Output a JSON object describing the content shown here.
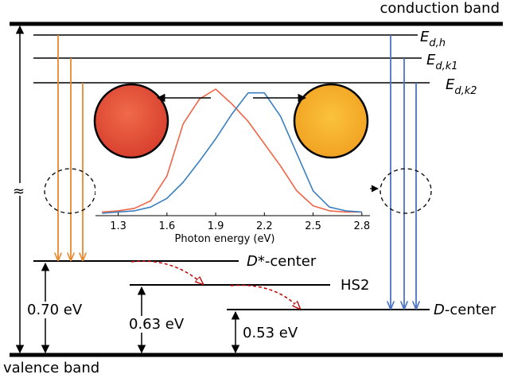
{
  "top_label": "conduction band",
  "bottom_label": "valence band",
  "levels": [
    {
      "symbol": "E",
      "subscript": "d,h"
    },
    {
      "symbol": "E",
      "subscript": "d,k1"
    },
    {
      "symbol": "E",
      "subscript": "d,k2"
    }
  ],
  "centers": [
    {
      "italic": "D*",
      "text": "-center",
      "energy": "0.70 eV"
    },
    {
      "text": "HS2",
      "energy": "0.63 eV"
    },
    {
      "italic": "D",
      "text": "-center",
      "energy": "0.53 eV"
    }
  ],
  "break_mark": "≈",
  "inset": {
    "type": "line",
    "xlabel": "Photon energy (eV)",
    "x": [
      1.2,
      1.3,
      1.4,
      1.5,
      1.6,
      1.7,
      1.8,
      1.9,
      2.0,
      2.1,
      2.2,
      2.3,
      2.4,
      2.5,
      2.6,
      2.7,
      2.8
    ],
    "series": [
      {
        "color": "#ef6548",
        "values": [
          0.01,
          0.02,
          0.04,
          0.1,
          0.3,
          0.72,
          0.92,
          1.0,
          0.88,
          0.74,
          0.56,
          0.38,
          0.18,
          0.06,
          0.02,
          0.01,
          0.01
        ]
      },
      {
        "color": "#3b7fc0",
        "values": [
          0,
          0.01,
          0.02,
          0.05,
          0.12,
          0.25,
          0.42,
          0.6,
          0.8,
          0.97,
          0.97,
          0.78,
          0.48,
          0.18,
          0.05,
          0.02,
          0.01
        ]
      }
    ],
    "xlim": [
      1.16,
      2.85
    ],
    "ylim": [
      0,
      1
    ],
    "xticks": [
      1.3,
      1.6,
      1.9,
      2.2,
      2.5,
      2.8
    ]
  }
}
